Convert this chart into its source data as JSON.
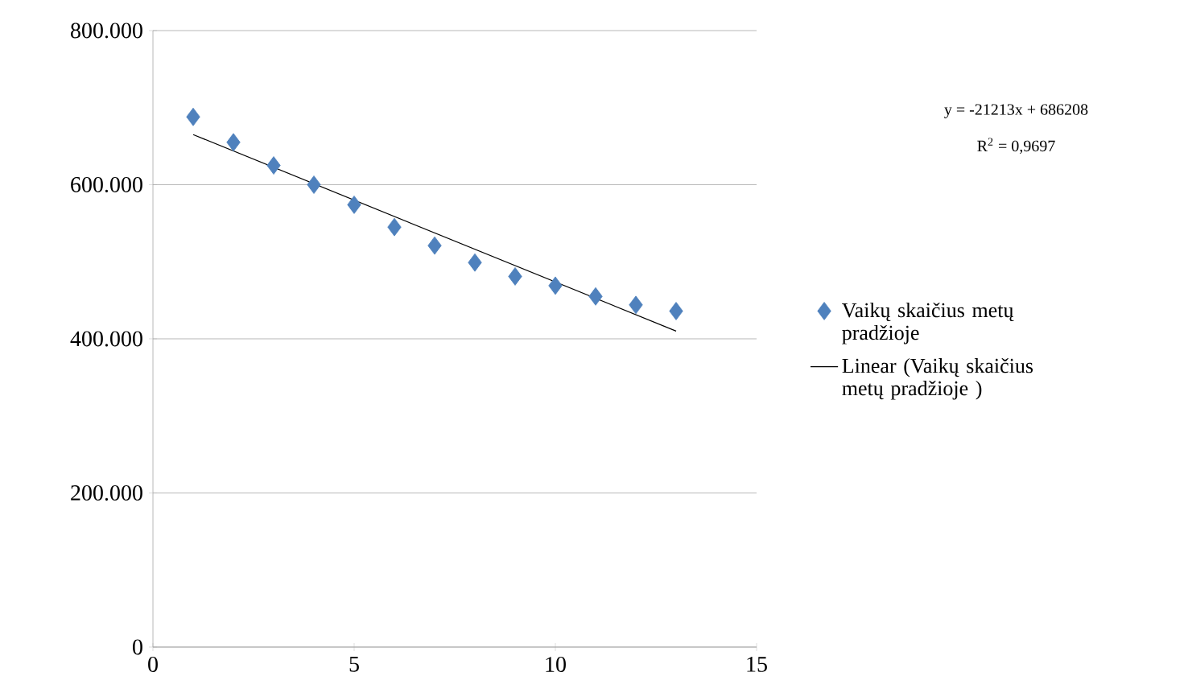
{
  "chart_data": {
    "type": "scatter",
    "x": [
      1,
      2,
      3,
      4,
      5,
      6,
      7,
      8,
      9,
      10,
      11,
      12,
      13
    ],
    "series": [
      {
        "name": "Vaikų skaičius metų pradžioje",
        "color": "#4f81bd",
        "marker": "diamond",
        "values": [
          688000,
          655000,
          625000,
          600000,
          574000,
          545000,
          521000,
          499000,
          481000,
          469000,
          455000,
          444000,
          436000
        ]
      },
      {
        "name": "Linear (Vaikų skaičius metų pradžioje )",
        "type": "line",
        "color": "#000000",
        "marker": "none",
        "line_style": "solid",
        "x": [
          1,
          13
        ],
        "values": [
          665000,
          410000
        ]
      }
    ],
    "xlim": [
      0,
      15
    ],
    "xticks": [
      0,
      5,
      10,
      15
    ],
    "ylim": [
      0,
      800000
    ],
    "yticks": [
      {
        "value": 0,
        "label": "0"
      },
      {
        "value": 200000,
        "label": "200.000"
      },
      {
        "value": 400000,
        "label": "400.000"
      },
      {
        "value": 600000,
        "label": "600.000"
      },
      {
        "value": 800000,
        "label": "800.000"
      }
    ],
    "grid": "y",
    "legend": "right",
    "annotations": [
      "y = -21213x + 686208",
      "R$^{2}$ = 0,9697"
    ]
  }
}
